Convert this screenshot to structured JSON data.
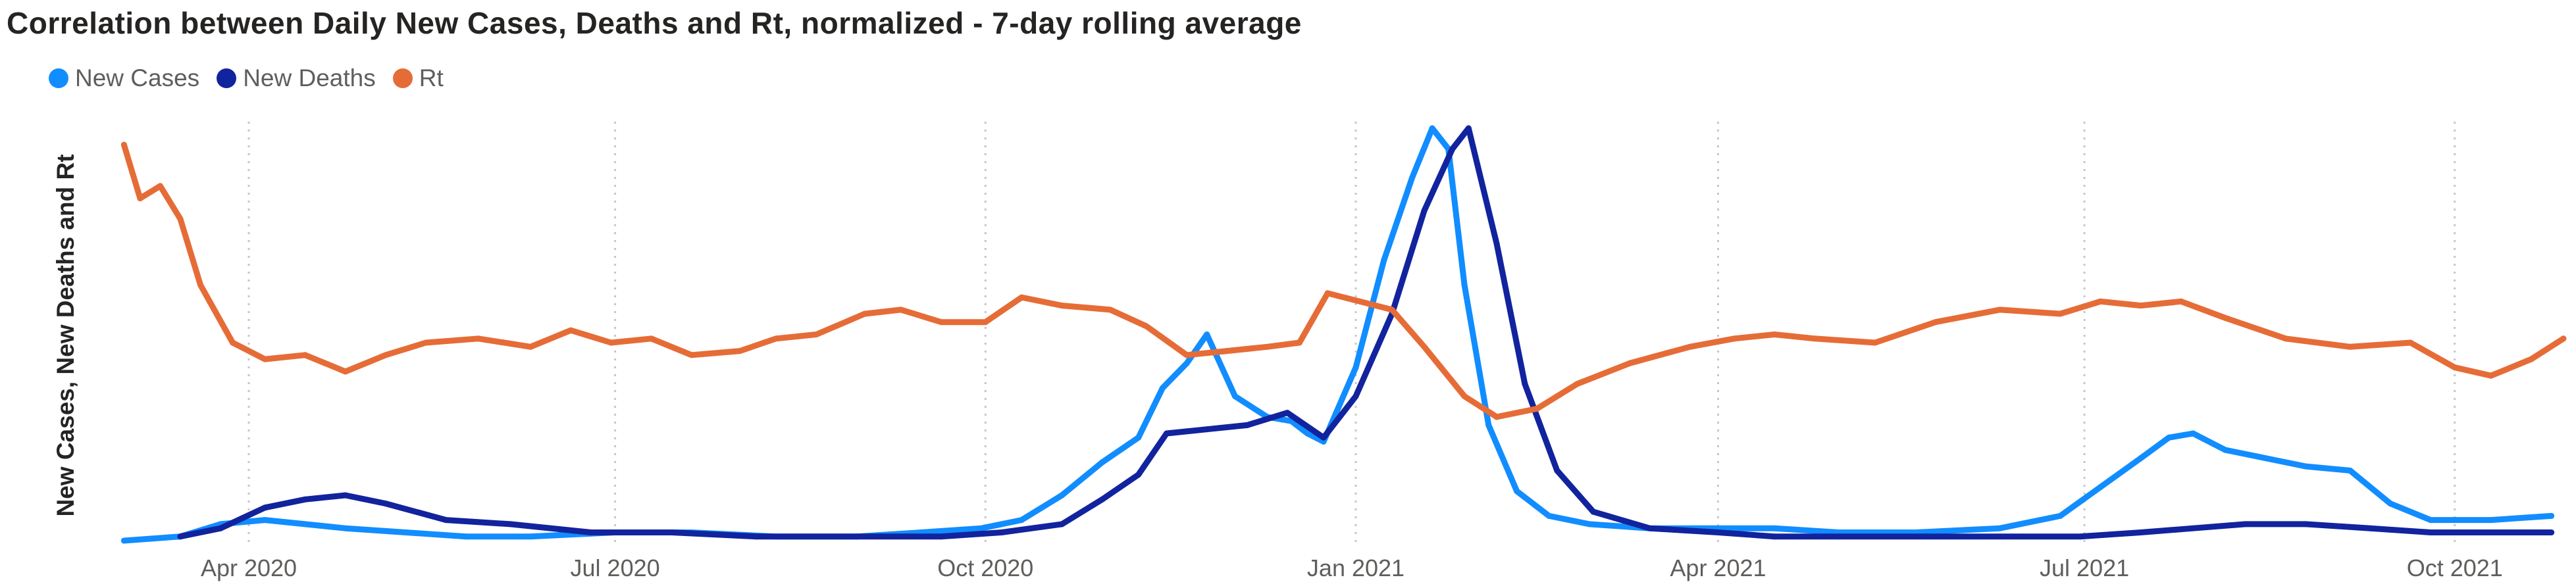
{
  "chart_data": {
    "type": "line",
    "title": "Correlation between Daily New Cases, Deaths and Rt, normalized - 7-day rolling average",
    "ylabel": "New Cases, New Deaths and Rt",
    "xlabel": "",
    "x_ticks": [
      "Apr 2020",
      "Jul 2020",
      "Oct 2020",
      "Jan 2021",
      "Apr 2021",
      "Jul 2021",
      "Oct 2021"
    ],
    "x_tick_dates": [
      "2020-04-01",
      "2020-07-01",
      "2020-10-01",
      "2021-01-01",
      "2021-04-01",
      "2021-07-01",
      "2021-10-01"
    ],
    "ylim": [
      0,
      1
    ],
    "grid": "vertical dotted at month ticks",
    "legend": "top-left",
    "colors": {
      "New Cases": "#118DFF",
      "New Deaths": "#12239E",
      "Rt": "#E66C37"
    },
    "series": [
      {
        "name": "New Cases",
        "color": "#118DFF",
        "x": [
          "2020-03-01",
          "2020-03-15",
          "2020-03-25",
          "2020-04-05",
          "2020-04-15",
          "2020-04-25",
          "2020-05-10",
          "2020-05-25",
          "2020-06-10",
          "2020-07-01",
          "2020-07-20",
          "2020-08-10",
          "2020-08-30",
          "2020-09-15",
          "2020-09-30",
          "2020-10-10",
          "2020-10-20",
          "2020-10-30",
          "2020-11-08",
          "2020-11-14",
          "2020-11-20",
          "2020-11-25",
          "2020-12-02",
          "2020-12-10",
          "2020-12-16",
          "2020-12-20",
          "2020-12-24",
          "2021-01-01",
          "2021-01-08",
          "2021-01-15",
          "2021-01-20",
          "2021-01-24",
          "2021-01-28",
          "2021-02-03",
          "2021-02-10",
          "2021-02-18",
          "2021-02-28",
          "2021-03-15",
          "2021-03-30",
          "2021-04-15",
          "2021-05-01",
          "2021-05-20",
          "2021-06-10",
          "2021-06-25",
          "2021-07-05",
          "2021-07-15",
          "2021-07-22",
          "2021-07-28",
          "2021-08-05",
          "2021-08-15",
          "2021-08-25",
          "2021-09-05",
          "2021-09-15",
          "2021-09-25",
          "2021-10-10",
          "2021-10-25"
        ],
        "values": [
          0.0,
          0.01,
          0.04,
          0.05,
          0.04,
          0.03,
          0.02,
          0.01,
          0.01,
          0.02,
          0.02,
          0.01,
          0.01,
          0.02,
          0.03,
          0.05,
          0.11,
          0.19,
          0.25,
          0.37,
          0.43,
          0.5,
          0.35,
          0.3,
          0.29,
          0.26,
          0.24,
          0.42,
          0.68,
          0.88,
          1.0,
          0.95,
          0.62,
          0.28,
          0.12,
          0.06,
          0.04,
          0.03,
          0.03,
          0.03,
          0.02,
          0.02,
          0.03,
          0.06,
          0.13,
          0.2,
          0.25,
          0.26,
          0.22,
          0.2,
          0.18,
          0.17,
          0.09,
          0.05,
          0.05,
          0.06
        ]
      },
      {
        "name": "New Deaths",
        "color": "#12239E",
        "x": [
          "2020-03-15",
          "2020-03-25",
          "2020-04-05",
          "2020-04-15",
          "2020-04-25",
          "2020-05-05",
          "2020-05-20",
          "2020-06-05",
          "2020-06-25",
          "2020-07-15",
          "2020-08-05",
          "2020-08-30",
          "2020-09-20",
          "2020-10-05",
          "2020-10-20",
          "2020-10-30",
          "2020-11-08",
          "2020-11-15",
          "2020-11-25",
          "2020-12-05",
          "2020-12-15",
          "2020-12-24",
          "2021-01-01",
          "2021-01-10",
          "2021-01-18",
          "2021-01-25",
          "2021-01-29",
          "2021-02-05",
          "2021-02-12",
          "2021-02-20",
          "2021-03-01",
          "2021-03-15",
          "2021-04-01",
          "2021-04-15",
          "2021-05-01",
          "2021-05-20",
          "2021-06-10",
          "2021-06-30",
          "2021-07-15",
          "2021-07-28",
          "2021-08-10",
          "2021-08-25",
          "2021-09-10",
          "2021-09-25",
          "2021-10-10",
          "2021-10-25"
        ],
        "values": [
          0.01,
          0.03,
          0.08,
          0.1,
          0.11,
          0.09,
          0.05,
          0.04,
          0.02,
          0.02,
          0.01,
          0.01,
          0.01,
          0.02,
          0.04,
          0.1,
          0.16,
          0.26,
          0.27,
          0.28,
          0.31,
          0.25,
          0.35,
          0.55,
          0.8,
          0.95,
          1.0,
          0.72,
          0.38,
          0.17,
          0.07,
          0.03,
          0.02,
          0.01,
          0.01,
          0.01,
          0.01,
          0.01,
          0.02,
          0.03,
          0.04,
          0.04,
          0.03,
          0.02,
          0.02,
          0.02
        ]
      },
      {
        "name": "Rt",
        "color": "#E66C37",
        "x": [
          "2020-03-01",
          "2020-03-05",
          "2020-03-10",
          "2020-03-15",
          "2020-03-20",
          "2020-03-28",
          "2020-04-05",
          "2020-04-15",
          "2020-04-25",
          "2020-05-05",
          "2020-05-15",
          "2020-05-28",
          "2020-06-10",
          "2020-06-20",
          "2020-06-30",
          "2020-07-10",
          "2020-07-20",
          "2020-08-01",
          "2020-08-10",
          "2020-08-20",
          "2020-09-01",
          "2020-09-10",
          "2020-09-20",
          "2020-10-01",
          "2020-10-10",
          "2020-10-20",
          "2020-11-01",
          "2020-11-10",
          "2020-11-20",
          "2020-11-30",
          "2020-12-10",
          "2020-12-18",
          "2020-12-25",
          "2021-01-02",
          "2021-01-10",
          "2021-01-18",
          "2021-01-28",
          "2021-02-05",
          "2021-02-15",
          "2021-02-25",
          "2021-03-10",
          "2021-03-25",
          "2021-04-05",
          "2021-04-15",
          "2021-04-25",
          "2021-05-10",
          "2021-05-25",
          "2021-06-10",
          "2021-06-25",
          "2021-07-05",
          "2021-07-15",
          "2021-07-25",
          "2021-08-05",
          "2021-08-20",
          "2021-09-05",
          "2021-09-20",
          "2021-10-01",
          "2021-10-10",
          "2021-10-20",
          "2021-10-28"
        ],
        "values": [
          0.96,
          0.83,
          0.86,
          0.78,
          0.62,
          0.48,
          0.44,
          0.45,
          0.41,
          0.45,
          0.48,
          0.49,
          0.47,
          0.51,
          0.48,
          0.49,
          0.45,
          0.46,
          0.49,
          0.5,
          0.55,
          0.56,
          0.53,
          0.53,
          0.59,
          0.57,
          0.56,
          0.52,
          0.45,
          0.46,
          0.47,
          0.48,
          0.6,
          0.58,
          0.56,
          0.47,
          0.35,
          0.3,
          0.32,
          0.38,
          0.43,
          0.47,
          0.49,
          0.5,
          0.49,
          0.48,
          0.53,
          0.56,
          0.55,
          0.58,
          0.57,
          0.58,
          0.54,
          0.49,
          0.47,
          0.48,
          0.42,
          0.4,
          0.44,
          0.49
        ]
      }
    ]
  }
}
